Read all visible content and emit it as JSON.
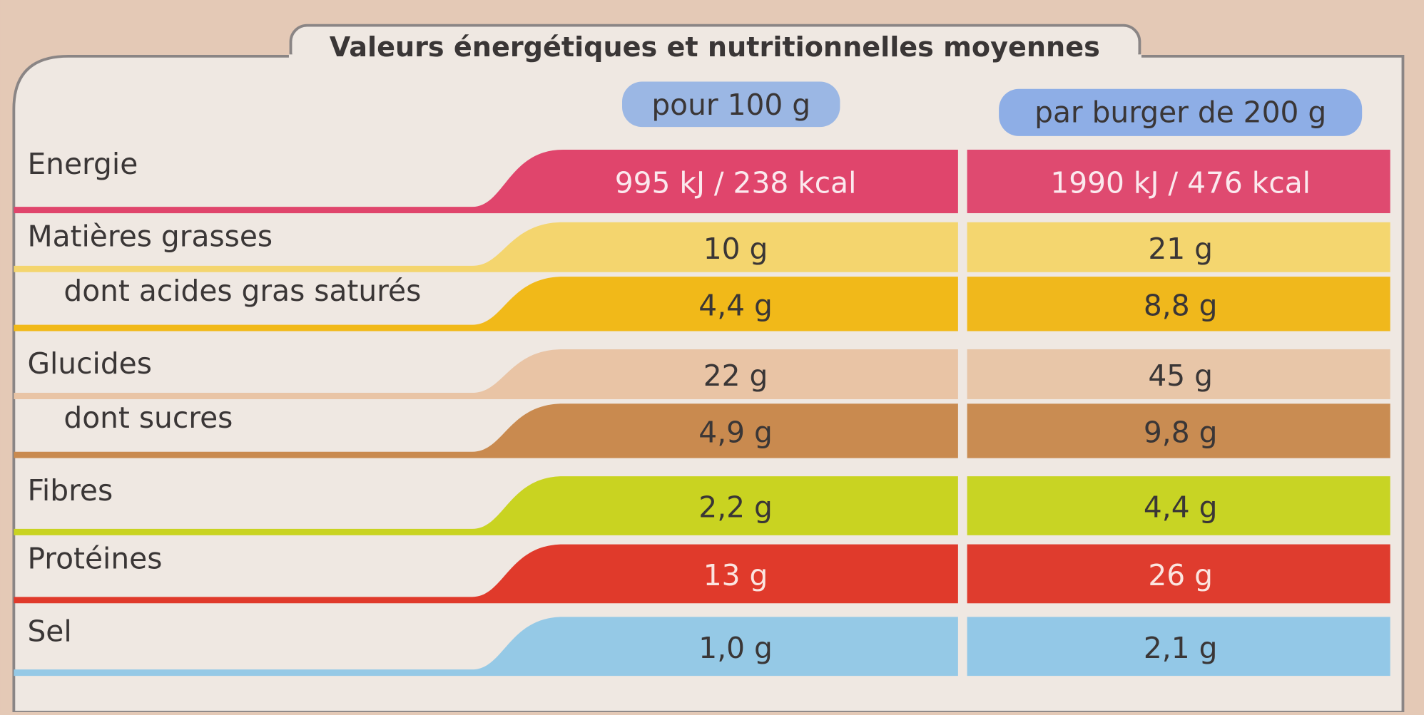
{
  "title": "Valeurs énergétiques et nutritionnelles moyennes",
  "columns": [
    "pour 100 g",
    "par burger de 200 g"
  ],
  "rows": [
    {
      "label": "Energie",
      "per_100g": "995 kJ / 238 kcal",
      "per_burger": "1990 kJ / 476 kcal"
    },
    {
      "label": "Matières grasses",
      "per_100g": "10 g",
      "per_burger": "21 g"
    },
    {
      "label": "dont acides gras saturés",
      "per_100g": "4,4 g",
      "per_burger": "8,8 g"
    },
    {
      "label": "Glucides",
      "per_100g": "22 g",
      "per_burger": "45 g"
    },
    {
      "label": "dont sucres",
      "per_100g": "4,9 g",
      "per_burger": "9,8 g"
    },
    {
      "label": "Fibres",
      "per_100g": "2,2 g",
      "per_burger": "4,4 g"
    },
    {
      "label": "Protéines",
      "per_100g": "13 g",
      "per_burger": "26 g"
    },
    {
      "label": "Sel",
      "per_100g": "1,0 g",
      "per_burger": "2,1 g"
    }
  ]
}
